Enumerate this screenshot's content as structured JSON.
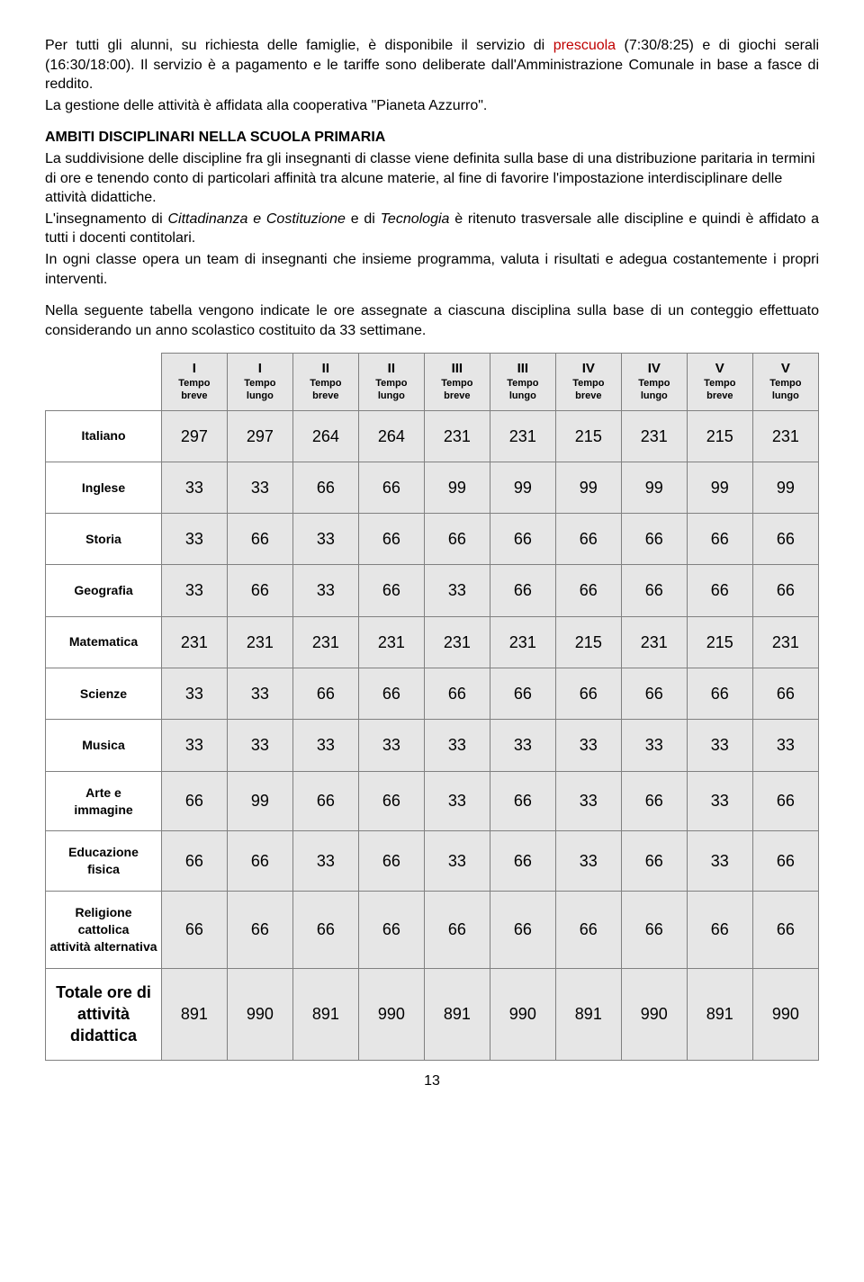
{
  "intro": {
    "p1a": "Per tutti gli alunni, su richiesta delle famiglie, è disponibile il servizio di ",
    "p1_red": "prescuola",
    "p1b": " (7:30/8:25) e di giochi serali (16:30/18:00). Il servizio è a pagamento e le tariffe sono deliberate dall'Amministrazione Comunale in base a fasce di reddito.",
    "p1c": "La gestione delle attività è affidata alla cooperativa \"Pianeta Azzurro\"."
  },
  "section": {
    "title": "AMBITI DISCIPLINARI NELLA SCUOLA PRIMARIA",
    "p1": "La suddivisione delle discipline fra gli insegnanti di classe viene definita sulla base di una distribuzione paritaria in termini di ore e tenendo conto di particolari affinità tra alcune materie, al fine di favorire l'impostazione interdisciplinare delle attività didattiche.",
    "p2a": "L'insegnamento di ",
    "p2_it1": "Cittadinanza e Costituzione",
    "p2b": " e di ",
    "p2_it2": "Tecnologia",
    "p2c": " è ritenuto trasversale alle discipline e quindi è affidato a tutti i docenti contitolari.",
    "p3": "In ogni classe opera un team di insegnanti che insieme programma, valuta i risultati e adegua costantemente i propri interventi.",
    "p4": "Nella seguente tabella vengono indicate le ore assegnate a ciascuna disciplina sulla base di un conteggio effettuato considerando un anno scolastico costituito da 33 settimane."
  },
  "table": {
    "grades": [
      "I",
      "I",
      "II",
      "II",
      "III",
      "III",
      "IV",
      "IV",
      "V",
      "V"
    ],
    "tempos": [
      "Tempo breve",
      "Tempo lungo",
      "Tempo breve",
      "Tempo lungo",
      "Tempo breve",
      "Tempo lungo",
      "Tempo breve",
      "Tempo lungo",
      "Tempo breve",
      "Tempo lungo"
    ],
    "rows": [
      {
        "label": "Italiano",
        "cells": [
          297,
          297,
          264,
          264,
          231,
          231,
          215,
          231,
          215,
          231
        ]
      },
      {
        "label": "Inglese",
        "cells": [
          33,
          33,
          66,
          66,
          99,
          99,
          99,
          99,
          99,
          99
        ]
      },
      {
        "label": "Storia",
        "cells": [
          33,
          66,
          33,
          66,
          66,
          66,
          66,
          66,
          66,
          66
        ]
      },
      {
        "label": "Geografia",
        "cells": [
          33,
          66,
          33,
          66,
          33,
          66,
          66,
          66,
          66,
          66
        ]
      },
      {
        "label": "Matematica",
        "cells": [
          231,
          231,
          231,
          231,
          231,
          231,
          215,
          231,
          215,
          231
        ]
      },
      {
        "label": "Scienze",
        "cells": [
          33,
          33,
          66,
          66,
          66,
          66,
          66,
          66,
          66,
          66
        ]
      },
      {
        "label": "Musica",
        "cells": [
          33,
          33,
          33,
          33,
          33,
          33,
          33,
          33,
          33,
          33
        ]
      },
      {
        "label": "Arte e immagine",
        "cells": [
          66,
          99,
          66,
          66,
          33,
          66,
          33,
          66,
          33,
          66
        ]
      },
      {
        "label": "Educazione fisica",
        "cells": [
          66,
          66,
          33,
          66,
          33,
          66,
          33,
          66,
          33,
          66
        ]
      },
      {
        "label": "Religione cattolica/attività alternativa",
        "cells": [
          66,
          66,
          66,
          66,
          66,
          66,
          66,
          66,
          66,
          66
        ]
      },
      {
        "label": "Totale ore di attività didattica",
        "cells": [
          891,
          990,
          891,
          990,
          891,
          990,
          891,
          990,
          891,
          990
        ]
      }
    ]
  },
  "page_number": "13",
  "style": {
    "header_bg": "#e6e6e6",
    "cell_bg": "#e6e6e6",
    "border_color": "#808080",
    "red": "#c00000",
    "body_font_size": 16,
    "cell_font_size": 18
  }
}
